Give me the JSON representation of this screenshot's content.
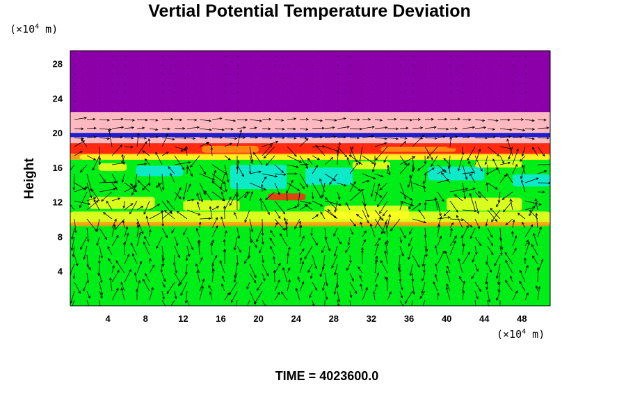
{
  "chart_data": {
    "type": "heatmap",
    "title": "Vertial Potential Temperature Deviation",
    "ylabel": "Height",
    "x_unit_prefix": "(×10",
    "x_unit_exp": "4",
    "x_unit_suffix": " m)",
    "y_unit_prefix": "(×10",
    "y_unit_exp": "4",
    "y_unit_suffix": " m)",
    "footer": "TIME = 4023600.0",
    "xlim": [
      0,
      51
    ],
    "ylim": [
      0,
      29.5
    ],
    "xticks": [
      4,
      8,
      12,
      16,
      20,
      24,
      28,
      32,
      36,
      40,
      44,
      48
    ],
    "yticks": [
      4,
      8,
      12,
      16,
      20,
      24,
      28
    ],
    "colors": {
      "top_band": "#8b00a8",
      "pink_band": "#ffb9c1",
      "blue_line": "#1e1ed0",
      "red": "#ff2a10",
      "orange": "#ff9a10",
      "yellow": "#ffff20",
      "green": "#00ee18",
      "cyan": "#10e8e8",
      "arrow": "#000000"
    },
    "bands": [
      {
        "y0": 22.4,
        "y1": 29.5,
        "color": "top_band"
      },
      {
        "y0": 20.0,
        "y1": 22.4,
        "color": "pink_band"
      },
      {
        "y0": 19.5,
        "y1": 20.0,
        "color": "blue_line"
      },
      {
        "y0": 18.8,
        "y1": 19.5,
        "color": "pink_band"
      },
      {
        "y0": 17.6,
        "y1": 18.8,
        "color": "red"
      },
      {
        "y0": 16.9,
        "y1": 17.6,
        "color": "orange"
      },
      {
        "y0": 9.2,
        "y1": 16.9,
        "color": "green"
      },
      {
        "y0": 0,
        "y1": 9.2,
        "color": "green"
      }
    ],
    "patches": [
      {
        "x": 1,
        "y": 16.9,
        "w": 50,
        "h": 0.6,
        "color": "yellow"
      },
      {
        "x": 0,
        "y": 9.4,
        "w": 51,
        "h": 1.5,
        "color": "yellow"
      },
      {
        "x": 0,
        "y": 9.2,
        "w": 51,
        "h": 0.5,
        "color": "orange"
      },
      {
        "x": 2,
        "y": 11.2,
        "w": 7,
        "h": 1.4,
        "color": "yellow"
      },
      {
        "x": 12,
        "y": 11.0,
        "w": 6,
        "h": 1.2,
        "color": "yellow"
      },
      {
        "x": 21,
        "y": 12.2,
        "w": 4,
        "h": 0.8,
        "color": "red"
      },
      {
        "x": 27,
        "y": 10.0,
        "w": 9,
        "h": 1.6,
        "color": "yellow"
      },
      {
        "x": 40,
        "y": 11.0,
        "w": 8,
        "h": 1.5,
        "color": "yellow"
      },
      {
        "x": 17,
        "y": 13.5,
        "w": 6,
        "h": 2.8,
        "color": "cyan"
      },
      {
        "x": 25,
        "y": 14.0,
        "w": 5,
        "h": 2.0,
        "color": "cyan"
      },
      {
        "x": 7,
        "y": 15.0,
        "w": 5,
        "h": 1.2,
        "color": "cyan"
      },
      {
        "x": 38,
        "y": 14.5,
        "w": 6,
        "h": 1.6,
        "color": "cyan"
      },
      {
        "x": 47,
        "y": 13.8,
        "w": 4,
        "h": 1.4,
        "color": "cyan"
      },
      {
        "x": 3,
        "y": 15.6,
        "w": 3,
        "h": 0.9,
        "color": "yellow"
      },
      {
        "x": 30,
        "y": 15.8,
        "w": 4,
        "h": 0.9,
        "color": "yellow"
      },
      {
        "x": 43,
        "y": 16.0,
        "w": 5,
        "h": 0.8,
        "color": "yellow"
      },
      {
        "x": 14,
        "y": 17.7,
        "w": 6,
        "h": 0.8,
        "color": "orange"
      },
      {
        "x": 33,
        "y": 17.8,
        "w": 8,
        "h": 0.6,
        "color": "orange"
      },
      {
        "x": 1,
        "y": 18.2,
        "w": 12,
        "h": 0.4,
        "color": "red"
      },
      {
        "x": 20,
        "y": 18.4,
        "w": 14,
        "h": 0.3,
        "color": "red"
      },
      {
        "x": 40,
        "y": 18.2,
        "w": 9,
        "h": 0.4,
        "color": "red"
      }
    ]
  }
}
